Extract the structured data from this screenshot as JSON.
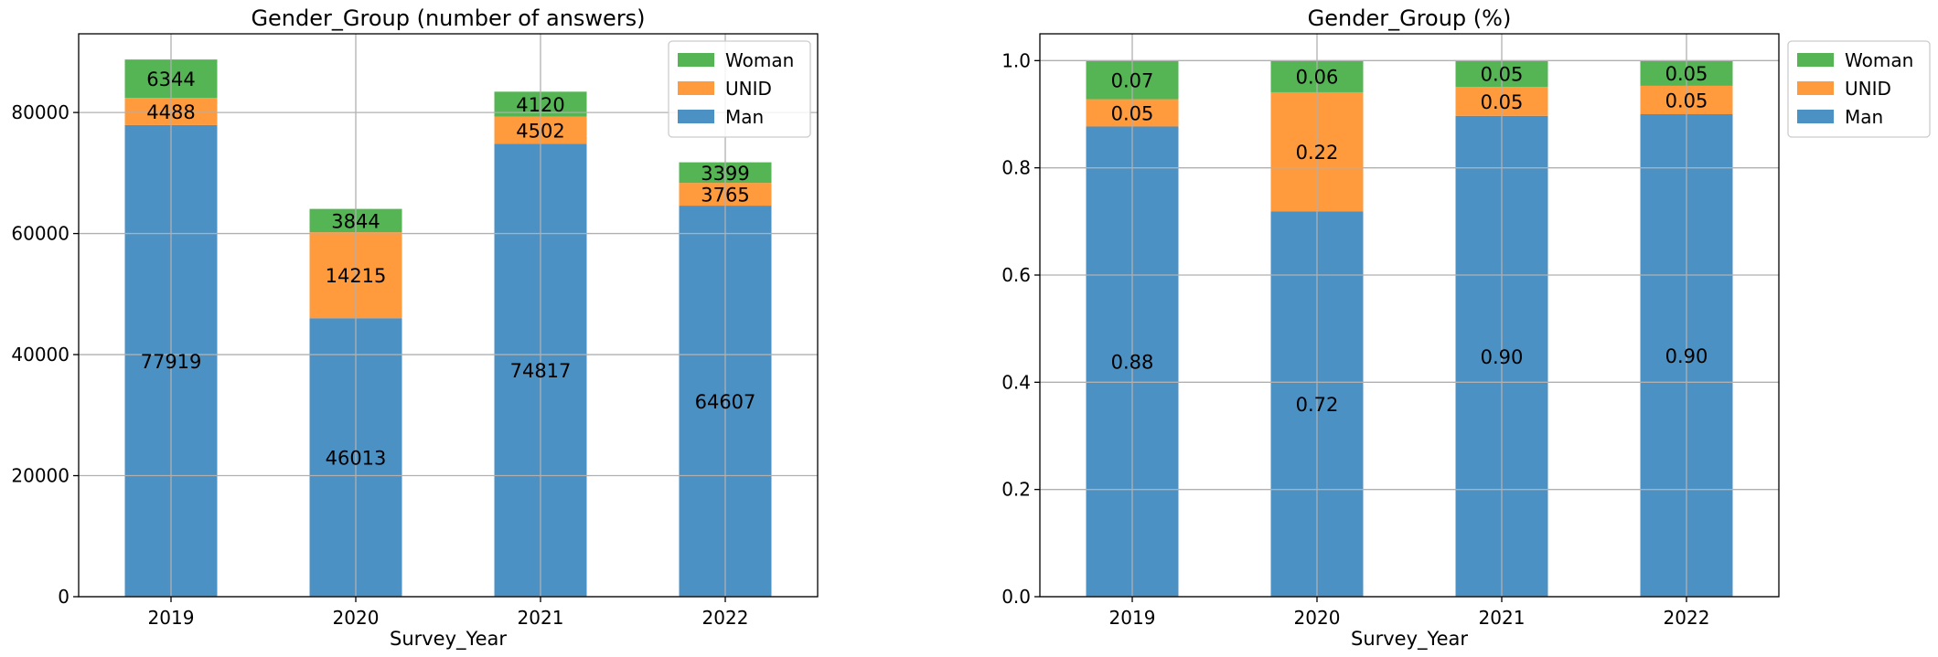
{
  "colors": {
    "Man": "#4c91c4",
    "UNID": "#ff9a3d",
    "Woman": "#55b454"
  },
  "chart_data": [
    {
      "type": "bar",
      "stacked": true,
      "title": "Gender_Group (number of answers)",
      "xlabel": "Survey_Year",
      "ylabel": "",
      "categories": [
        "2019",
        "2020",
        "2021",
        "2022"
      ],
      "series": [
        {
          "name": "Man",
          "values": [
            77919,
            46013,
            74817,
            64607
          ],
          "labels": [
            "77919",
            "46013",
            "74817",
            "64607"
          ]
        },
        {
          "name": "UNID",
          "values": [
            4488,
            14215,
            4502,
            3765
          ],
          "labels": [
            "4488",
            "14215",
            "4502",
            "3765"
          ]
        },
        {
          "name": "Woman",
          "values": [
            6344,
            3844,
            4120,
            3399
          ],
          "labels": [
            "6344",
            "3844",
            "4120",
            "3399"
          ]
        }
      ],
      "ylim": [
        0,
        93000
      ],
      "yticks": [
        0,
        20000,
        40000,
        60000,
        80000
      ],
      "ytick_labels": [
        "0",
        "20000",
        "40000",
        "60000",
        "80000"
      ],
      "grid": true,
      "legend": {
        "placement": "top-right",
        "order": [
          "Woman",
          "UNID",
          "Man"
        ]
      }
    },
    {
      "type": "bar",
      "stacked": true,
      "title": "Gender_Group (%)",
      "xlabel": "Survey_Year",
      "ylabel": "",
      "categories": [
        "2019",
        "2020",
        "2021",
        "2022"
      ],
      "series": [
        {
          "name": "Man",
          "values": [
            0.877,
            0.719,
            0.897,
            0.9
          ],
          "labels": [
            "0.88",
            "0.72",
            "0.90",
            "0.90"
          ]
        },
        {
          "name": "UNID",
          "values": [
            0.051,
            0.222,
            0.054,
            0.053
          ],
          "labels": [
            "0.05",
            "0.22",
            "0.05",
            "0.05"
          ]
        },
        {
          "name": "Woman",
          "values": [
            0.072,
            0.059,
            0.049,
            0.047
          ],
          "labels": [
            "0.07",
            "0.06",
            "0.05",
            "0.05"
          ]
        }
      ],
      "ylim": [
        0,
        1.05
      ],
      "yticks": [
        0,
        0.2,
        0.4,
        0.6,
        0.8,
        1.0
      ],
      "ytick_labels": [
        "0.0",
        "0.2",
        "0.4",
        "0.6",
        "0.8",
        "1.0"
      ],
      "grid": true,
      "legend": {
        "placement": "outside-right",
        "order": [
          "Woman",
          "UNID",
          "Man"
        ]
      }
    }
  ]
}
